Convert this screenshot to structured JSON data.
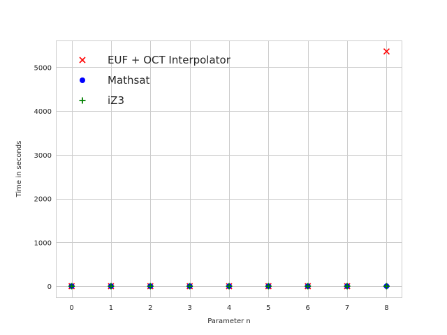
{
  "chart_data": {
    "type": "scatter",
    "xlabel": "Parameter n",
    "ylabel": "Time in seconds",
    "xlim": [
      -0.4,
      8.4
    ],
    "ylim": [
      -270,
      5610
    ],
    "x_ticks": [
      0,
      1,
      2,
      3,
      4,
      5,
      6,
      7,
      8
    ],
    "y_ticks": [
      0,
      1000,
      2000,
      3000,
      4000,
      5000
    ],
    "grid": true,
    "legend_position": "top-left",
    "series": [
      {
        "name": "EUF + OCT Interpolator",
        "marker": "x",
        "color": "#ff0000",
        "x": [
          0,
          1,
          2,
          3,
          4,
          5,
          6,
          7,
          8
        ],
        "y": [
          0,
          0,
          0,
          0,
          0,
          0,
          0,
          0,
          5360
        ]
      },
      {
        "name": "Mathsat",
        "marker": "circle",
        "color": "#0000ff",
        "x": [
          0,
          1,
          2,
          3,
          4,
          5,
          6,
          7,
          8
        ],
        "y": [
          0,
          0,
          0,
          0,
          0,
          0,
          0,
          0,
          0
        ]
      },
      {
        "name": "iZ3",
        "marker": "plus",
        "color": "#008000",
        "x": [
          0,
          1,
          2,
          3,
          4,
          5,
          6,
          7,
          8
        ],
        "y": [
          0,
          0,
          0,
          0,
          0,
          0,
          0,
          0,
          0
        ]
      }
    ]
  }
}
